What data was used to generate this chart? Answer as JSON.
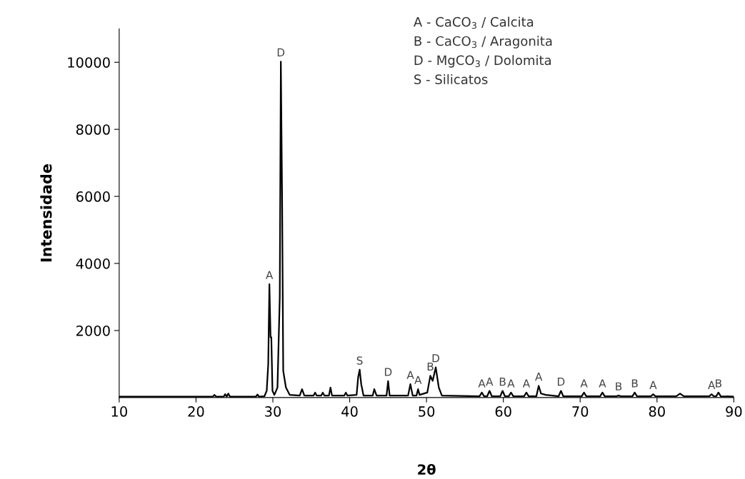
{
  "chart_data": {
    "type": "line",
    "xlabel": "2θ",
    "ylabel": "Intensidade",
    "xlim": [
      10,
      90
    ],
    "ylim": [
      0,
      11000
    ],
    "xticks": [
      10,
      20,
      30,
      40,
      50,
      60,
      70,
      80,
      90
    ],
    "yticks": [
      2000,
      4000,
      6000,
      8000,
      10000
    ],
    "grid": false,
    "legend": false,
    "marker": "none",
    "line_style": "solid",
    "series": [
      {
        "color": "#000000",
        "x": [
          10,
          22.2,
          22.4,
          22.6,
          23.6,
          23.8,
          24.0,
          24.2,
          24.4,
          27.8,
          28.0,
          28.2,
          28.9,
          29.2,
          29.4,
          29.55,
          29.7,
          29.8,
          29.95,
          30.2,
          30.6,
          30.9,
          31.04,
          31.2,
          31.35,
          31.7,
          32.2,
          33.5,
          33.8,
          34.1,
          35.3,
          35.5,
          35.7,
          36.3,
          36.5,
          36.7,
          37.3,
          37.5,
          37.7,
          39.3,
          39.5,
          39.7,
          40.9,
          41.1,
          41.3,
          41.5,
          41.8,
          43.0,
          43.2,
          43.5,
          44.8,
          45.0,
          45.2,
          47.6,
          47.9,
          48.2,
          48.7,
          48.9,
          49.1,
          50.1,
          50.5,
          50.8,
          51.2,
          51.6,
          52.0,
          56.9,
          57.2,
          57.5,
          57.9,
          58.2,
          58.5,
          59.6,
          59.9,
          60.2,
          60.7,
          61.0,
          61.3,
          62.7,
          63.0,
          63.3,
          64.3,
          64.6,
          64.9,
          65.5,
          67.2,
          67.5,
          67.8,
          70.2,
          70.5,
          70.8,
          72.6,
          72.9,
          73.2,
          74.7,
          75.0,
          75.3,
          76.8,
          77.1,
          77.4,
          79.2,
          79.5,
          79.8,
          82.5,
          83.0,
          83.5,
          86.8,
          87.1,
          87.4,
          87.7,
          88.0,
          88.3,
          90
        ],
        "values": [
          30,
          30,
          80,
          30,
          30,
          100,
          30,
          120,
          30,
          30,
          90,
          30,
          40,
          200,
          1000,
          3380,
          1800,
          1800,
          200,
          80,
          300,
          3000,
          10020,
          6000,
          800,
          300,
          80,
          60,
          250,
          60,
          60,
          150,
          60,
          60,
          150,
          60,
          60,
          300,
          60,
          60,
          150,
          60,
          80,
          600,
          830,
          400,
          60,
          60,
          250,
          60,
          60,
          490,
          60,
          60,
          400,
          60,
          60,
          250,
          80,
          150,
          650,
          500,
          900,
          300,
          60,
          40,
          150,
          40,
          40,
          200,
          40,
          40,
          200,
          40,
          40,
          150,
          40,
          40,
          150,
          40,
          40,
          350,
          120,
          80,
          40,
          200,
          40,
          40,
          150,
          40,
          40,
          150,
          40,
          40,
          60,
          40,
          40,
          150,
          40,
          40,
          100,
          40,
          40,
          120,
          40,
          40,
          100,
          40,
          40,
          150,
          40,
          30
        ]
      }
    ],
    "annotations": [
      "A - CaCO$_{3}$ / Calcita",
      "B - CaCO$_{3}$ / Aragonita",
      "D - MgCO$_{3}$ / Dolomita",
      "S - Silicatos",
      {
        "text": "A",
        "x": 29.55,
        "y": 3380
      },
      {
        "text": "D",
        "x": 31.04,
        "y": 10020
      },
      {
        "text": "S",
        "x": 41.3,
        "y": 830
      },
      {
        "text": "D",
        "x": 45.0,
        "y": 490
      },
      {
        "text": "A",
        "x": 47.9,
        "y": 400
      },
      {
        "text": "A",
        "x": 48.9,
        "y": 250
      },
      {
        "text": "B",
        "x": 50.5,
        "y": 650
      },
      {
        "text": "D",
        "x": 51.2,
        "y": 900
      },
      {
        "text": "A",
        "x": 57.2,
        "y": 150
      },
      {
        "text": "A",
        "x": 58.2,
        "y": 200
      },
      {
        "text": "B",
        "x": 59.9,
        "y": 200
      },
      {
        "text": "A",
        "x": 61.0,
        "y": 150
      },
      {
        "text": "A",
        "x": 63.0,
        "y": 150
      },
      {
        "text": "A",
        "x": 64.6,
        "y": 350
      },
      {
        "text": "D",
        "x": 67.5,
        "y": 200
      },
      {
        "text": "A",
        "x": 70.5,
        "y": 150
      },
      {
        "text": "A",
        "x": 72.9,
        "y": 150
      },
      {
        "text": "B",
        "x": 75.0,
        "y": 60
      },
      {
        "text": "B",
        "x": 77.1,
        "y": 150
      },
      {
        "text": "A",
        "x": 79.5,
        "y": 100
      },
      {
        "text": "A",
        "x": 87.1,
        "y": 100
      },
      {
        "text": "B",
        "x": 88.0,
        "y": 150
      }
    ]
  }
}
